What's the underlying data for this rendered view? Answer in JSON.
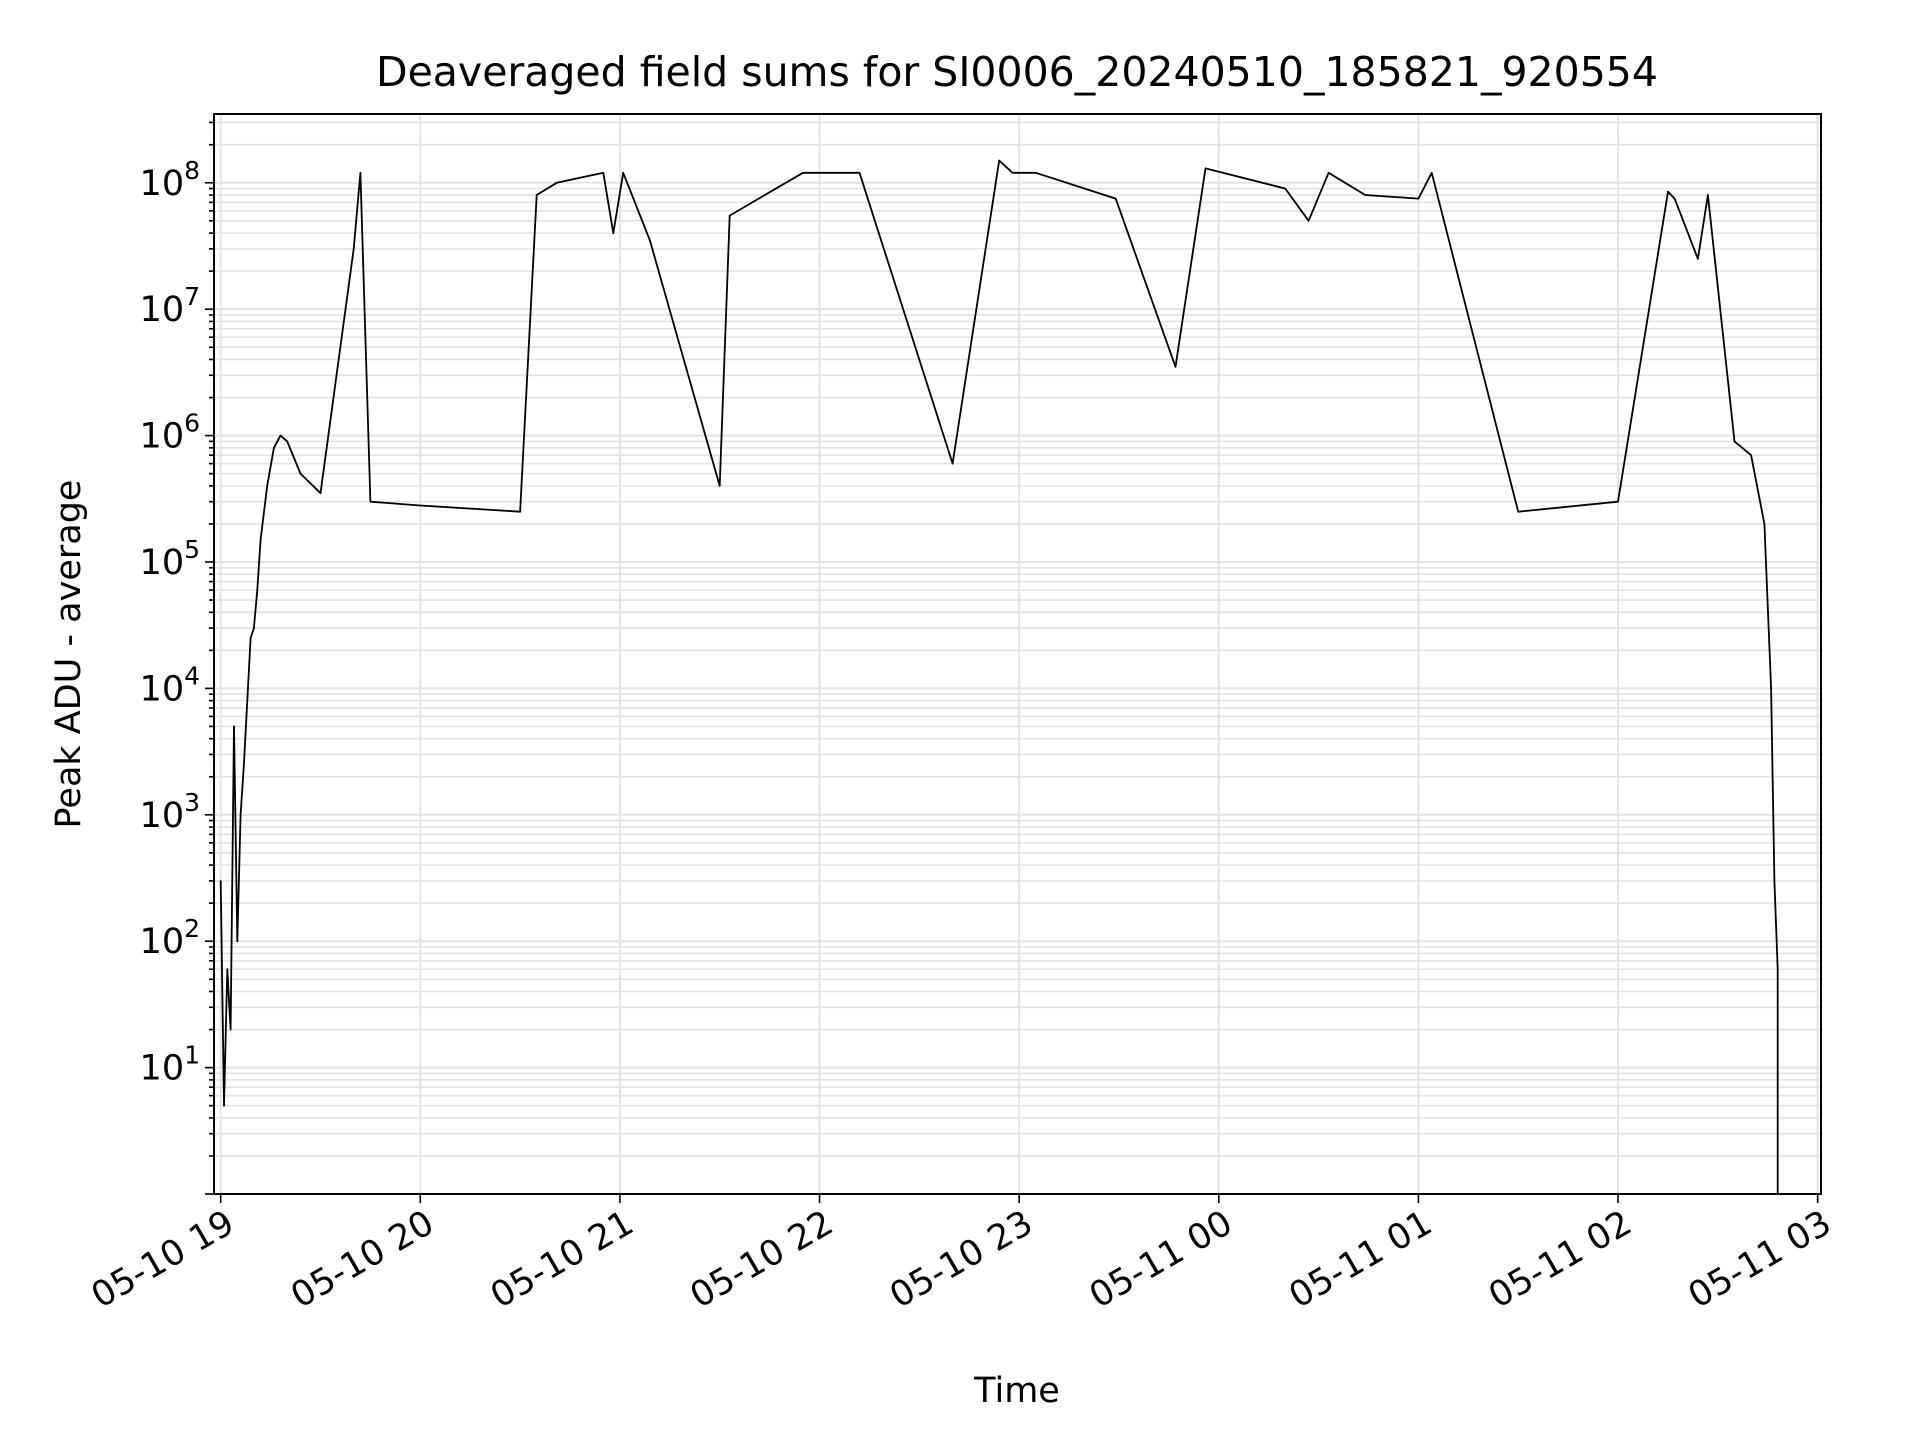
{
  "chart_data": {
    "type": "line",
    "title": "Deaveraged field sums for SI0006_20240510_185821_920554",
    "xlabel": "Time",
    "ylabel": "Peak ADU - average",
    "x_scale": "time",
    "y_scale": "log",
    "xlim": [
      "2024-05-10 18:58",
      "2024-05-11 03:01"
    ],
    "ylim": [
      1,
      350000000
    ],
    "grid": true,
    "grid_minor": true,
    "legend": "none",
    "x_tick_labels": [
      "05-10 19",
      "05-10 20",
      "05-10 21",
      "05-10 22",
      "05-10 23",
      "05-11 00",
      "05-11 01",
      "05-11 02",
      "05-11 03"
    ],
    "y_tick_labels": [
      {
        "base": "10",
        "exp": "1"
      },
      {
        "base": "10",
        "exp": "2"
      },
      {
        "base": "10",
        "exp": "3"
      },
      {
        "base": "10",
        "exp": "4"
      },
      {
        "base": "10",
        "exp": "5"
      },
      {
        "base": "10",
        "exp": "6"
      },
      {
        "base": "10",
        "exp": "7"
      },
      {
        "base": "10",
        "exp": "8"
      }
    ],
    "series": [
      {
        "color": "#000000",
        "points": [
          [
            "2024-05-10 19:00",
            300
          ],
          [
            "2024-05-10 19:01",
            5
          ],
          [
            "2024-05-10 19:02",
            60
          ],
          [
            "2024-05-10 19:03",
            20
          ],
          [
            "2024-05-10 19:04",
            5000
          ],
          [
            "2024-05-10 19:05",
            100
          ],
          [
            "2024-05-10 19:06",
            1000
          ],
          [
            "2024-05-10 19:07",
            2500
          ],
          [
            "2024-05-10 19:08",
            8000
          ],
          [
            "2024-05-10 19:09",
            25000
          ],
          [
            "2024-05-10 19:10",
            30000
          ],
          [
            "2024-05-10 19:11",
            60000
          ],
          [
            "2024-05-10 19:12",
            150000
          ],
          [
            "2024-05-10 19:14",
            400000
          ],
          [
            "2024-05-10 19:16",
            800000
          ],
          [
            "2024-05-10 19:18",
            1000000
          ],
          [
            "2024-05-10 19:20",
            900000
          ],
          [
            "2024-05-10 19:24",
            500000
          ],
          [
            "2024-05-10 19:30",
            350000
          ],
          [
            "2024-05-10 19:40",
            30000000
          ],
          [
            "2024-05-10 19:42",
            120000000
          ],
          [
            "2024-05-10 19:45",
            300000
          ],
          [
            "2024-05-10 20:00",
            280000
          ],
          [
            "2024-05-10 20:30",
            250000
          ],
          [
            "2024-05-10 20:35",
            80000000
          ],
          [
            "2024-05-10 20:41",
            100000000
          ],
          [
            "2024-05-10 20:55",
            120000000
          ],
          [
            "2024-05-10 20:58",
            40000000
          ],
          [
            "2024-05-10 21:01",
            120000000
          ],
          [
            "2024-05-10 21:09",
            35000000
          ],
          [
            "2024-05-10 21:30",
            400000
          ],
          [
            "2024-05-10 21:33",
            55000000
          ],
          [
            "2024-05-10 21:55",
            120000000
          ],
          [
            "2024-05-10 22:12",
            120000000
          ],
          [
            "2024-05-10 22:40",
            600000
          ],
          [
            "2024-05-10 22:54",
            150000000
          ],
          [
            "2024-05-10 22:58",
            120000000
          ],
          [
            "2024-05-10 23:05",
            120000000
          ],
          [
            "2024-05-10 23:29",
            75000000
          ],
          [
            "2024-05-10 23:47",
            3500000
          ],
          [
            "2024-05-10 23:56",
            130000000
          ],
          [
            "2024-05-11 00:20",
            90000000
          ],
          [
            "2024-05-11 00:27",
            50000000
          ],
          [
            "2024-05-11 00:33",
            120000000
          ],
          [
            "2024-05-11 00:44",
            80000000
          ],
          [
            "2024-05-11 01:00",
            75000000
          ],
          [
            "2024-05-11 01:04",
            120000000
          ],
          [
            "2024-05-11 01:30",
            250000
          ],
          [
            "2024-05-11 02:00",
            300000
          ],
          [
            "2024-05-11 02:15",
            85000000
          ],
          [
            "2024-05-11 02:17",
            75000000
          ],
          [
            "2024-05-11 02:24",
            25000000
          ],
          [
            "2024-05-11 02:27",
            80000000
          ],
          [
            "2024-05-11 02:35",
            900000
          ],
          [
            "2024-05-11 02:40",
            700000
          ],
          [
            "2024-05-11 02:44",
            200000
          ],
          [
            "2024-05-11 02:46",
            10000
          ],
          [
            "2024-05-11 02:47",
            300
          ],
          [
            "2024-05-11 02:48",
            60
          ],
          [
            "2024-05-11 02:48",
            1
          ]
        ]
      }
    ]
  }
}
